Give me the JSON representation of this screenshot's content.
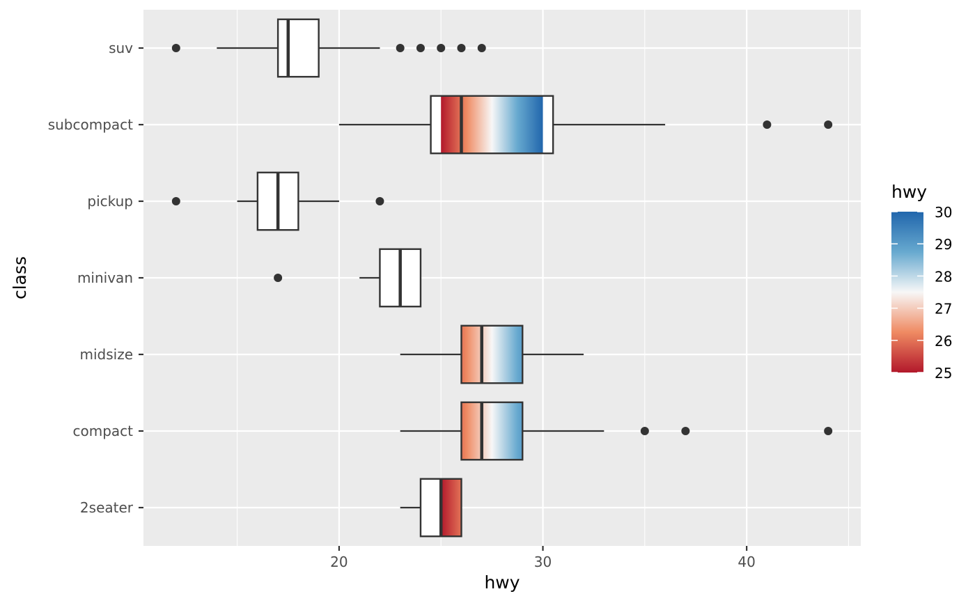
{
  "chart_data": {
    "type": "boxplot",
    "orientation": "horizontal",
    "xlabel": "hwy",
    "ylabel": "class",
    "xlim": [
      10.4,
      45.6
    ],
    "x_ticks": [
      20,
      30,
      40
    ],
    "x_minor_ticks": [
      15,
      25,
      35,
      45
    ],
    "grid": true,
    "categories": [
      "2seater",
      "compact",
      "midsize",
      "minivan",
      "pickup",
      "subcompact",
      "suv"
    ],
    "boxes": [
      {
        "class": "2seater",
        "whisker_low": 23,
        "q1": 24,
        "median": 25,
        "q3": 26,
        "whisker_high": 26,
        "outliers": []
      },
      {
        "class": "compact",
        "whisker_low": 23,
        "q1": 26,
        "median": 27,
        "q3": 29,
        "whisker_high": 33,
        "outliers": [
          35,
          37,
          44
        ]
      },
      {
        "class": "midsize",
        "whisker_low": 23,
        "q1": 26,
        "median": 27,
        "q3": 29,
        "whisker_high": 32,
        "outliers": []
      },
      {
        "class": "minivan",
        "whisker_low": 21,
        "q1": 22,
        "median": 23,
        "q3": 24,
        "whisker_high": 24,
        "outliers": [
          17
        ]
      },
      {
        "class": "pickup",
        "whisker_low": 15,
        "q1": 16,
        "median": 17,
        "q3": 18,
        "whisker_high": 20,
        "outliers": [
          12,
          22
        ]
      },
      {
        "class": "subcompact",
        "whisker_low": 20,
        "q1": 24.5,
        "median": 26,
        "q3": 30.5,
        "whisker_high": 36,
        "outliers": [
          41,
          44
        ]
      },
      {
        "class": "suv",
        "whisker_low": 14,
        "q1": 17,
        "median": 17.5,
        "q3": 19,
        "whisker_high": 22,
        "outliers": [
          12,
          23,
          24,
          25,
          26,
          27
        ]
      }
    ],
    "fill_gradient_range": [
      25,
      30
    ],
    "legend": {
      "title": "hwy",
      "position": "right",
      "range": [
        25,
        30
      ],
      "labels": [
        25,
        26,
        27,
        28,
        29,
        30
      ],
      "colors": {
        "low": "#b2182b",
        "mid_low": "#ef8a62",
        "mid": "#f7f7f7",
        "mid_high": "#67a9cf",
        "high": "#2166ac"
      }
    }
  },
  "colors": {
    "panel_bg": "#ebebeb",
    "grid_major": "#ffffff",
    "box_line": "#333333",
    "outlier": "#333333"
  }
}
